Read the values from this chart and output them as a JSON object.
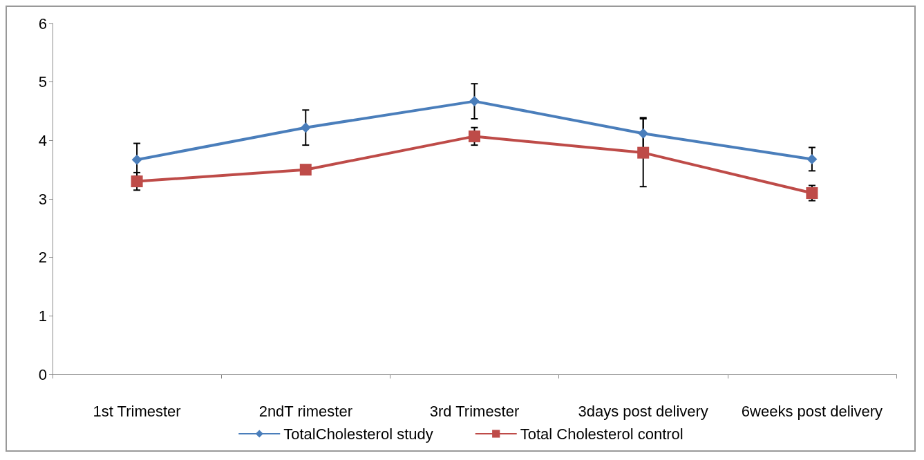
{
  "chart_data": {
    "type": "line",
    "categories": [
      "1st Trimester",
      "2ndT rimester",
      "3rd Trimester",
      "3days post delivery",
      "6weeks post delivery"
    ],
    "series": [
      {
        "name": "TotalCholesterol study",
        "color": "#4a7ebb",
        "marker": "diamond",
        "values": [
          3.67,
          4.22,
          4.67,
          4.12,
          3.68
        ],
        "errors": [
          0.28,
          0.3,
          0.3,
          0.27,
          0.2
        ]
      },
      {
        "name": "Total Cholesterol control",
        "color": "#be4b48",
        "marker": "square",
        "values": [
          3.3,
          3.5,
          4.07,
          3.79,
          3.1
        ],
        "errors": [
          0.15,
          null,
          0.15,
          0.58,
          0.13
        ]
      }
    ],
    "ylim": [
      0,
      6
    ],
    "yticks": [
      0,
      1,
      2,
      3,
      4,
      5,
      6
    ],
    "grid": false,
    "legend": "bottom",
    "line_style": "solid"
  }
}
